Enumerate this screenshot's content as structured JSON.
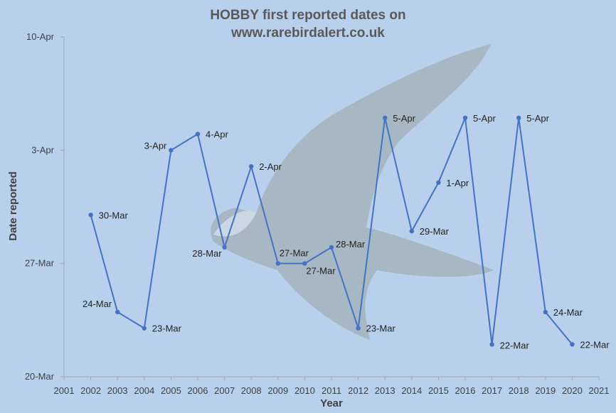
{
  "chart_data": {
    "type": "line",
    "title": "HOBBY first reported dates on",
    "subtitle": "www.rarebirdalert.co.uk",
    "xlabel": "Year",
    "ylabel": "Date reported",
    "x_ticks": [
      "2001",
      "2002",
      "2003",
      "2004",
      "2005",
      "2006",
      "2007",
      "2008",
      "2009",
      "2010",
      "2011",
      "2012",
      "2013",
      "2014",
      "2015",
      "2016",
      "2017",
      "2018",
      "2019",
      "2020",
      "2021"
    ],
    "xlim": [
      2001,
      2021
    ],
    "y_ticks": [
      "20-Mar",
      "27-Mar",
      "3-Apr",
      "10-Apr"
    ],
    "ylim": [
      "20-Mar",
      "10-Apr"
    ],
    "grid": false,
    "series": [
      {
        "x": [
          2002,
          2003,
          2004,
          2005,
          2006,
          2007,
          2008,
          2009,
          2010,
          2011,
          2012,
          2013,
          2014,
          2015,
          2016,
          2017,
          2018,
          2019,
          2020
        ],
        "values": [
          "30-Mar",
          "24-Mar",
          "23-Mar",
          "3-Apr",
          "4-Apr",
          "28-Mar",
          "2-Apr",
          "27-Mar",
          "27-Mar",
          "28-Mar",
          "23-Mar",
          "5-Apr",
          "29-Mar",
          "1-Apr",
          "5-Apr",
          "22-Mar",
          "5-Apr",
          "24-Mar",
          "22-Mar"
        ],
        "labels": [
          "30-Mar",
          "24-Mar",
          "23-Mar",
          "3-Apr",
          "4-Apr",
          "28-Mar",
          "2-Apr",
          "27-Mar",
          "27-Mar",
          "28-Mar",
          "23-Mar",
          "5-Apr",
          "29-Mar",
          "1-Apr",
          "5-Apr",
          "22-Mar",
          "5-Apr",
          "24-Mar",
          "22-Mar"
        ],
        "color": "#4472c4"
      }
    ],
    "colors": {
      "background": "#b9d0ec",
      "axis": "#a6a6a6",
      "text": "#404040"
    }
  }
}
